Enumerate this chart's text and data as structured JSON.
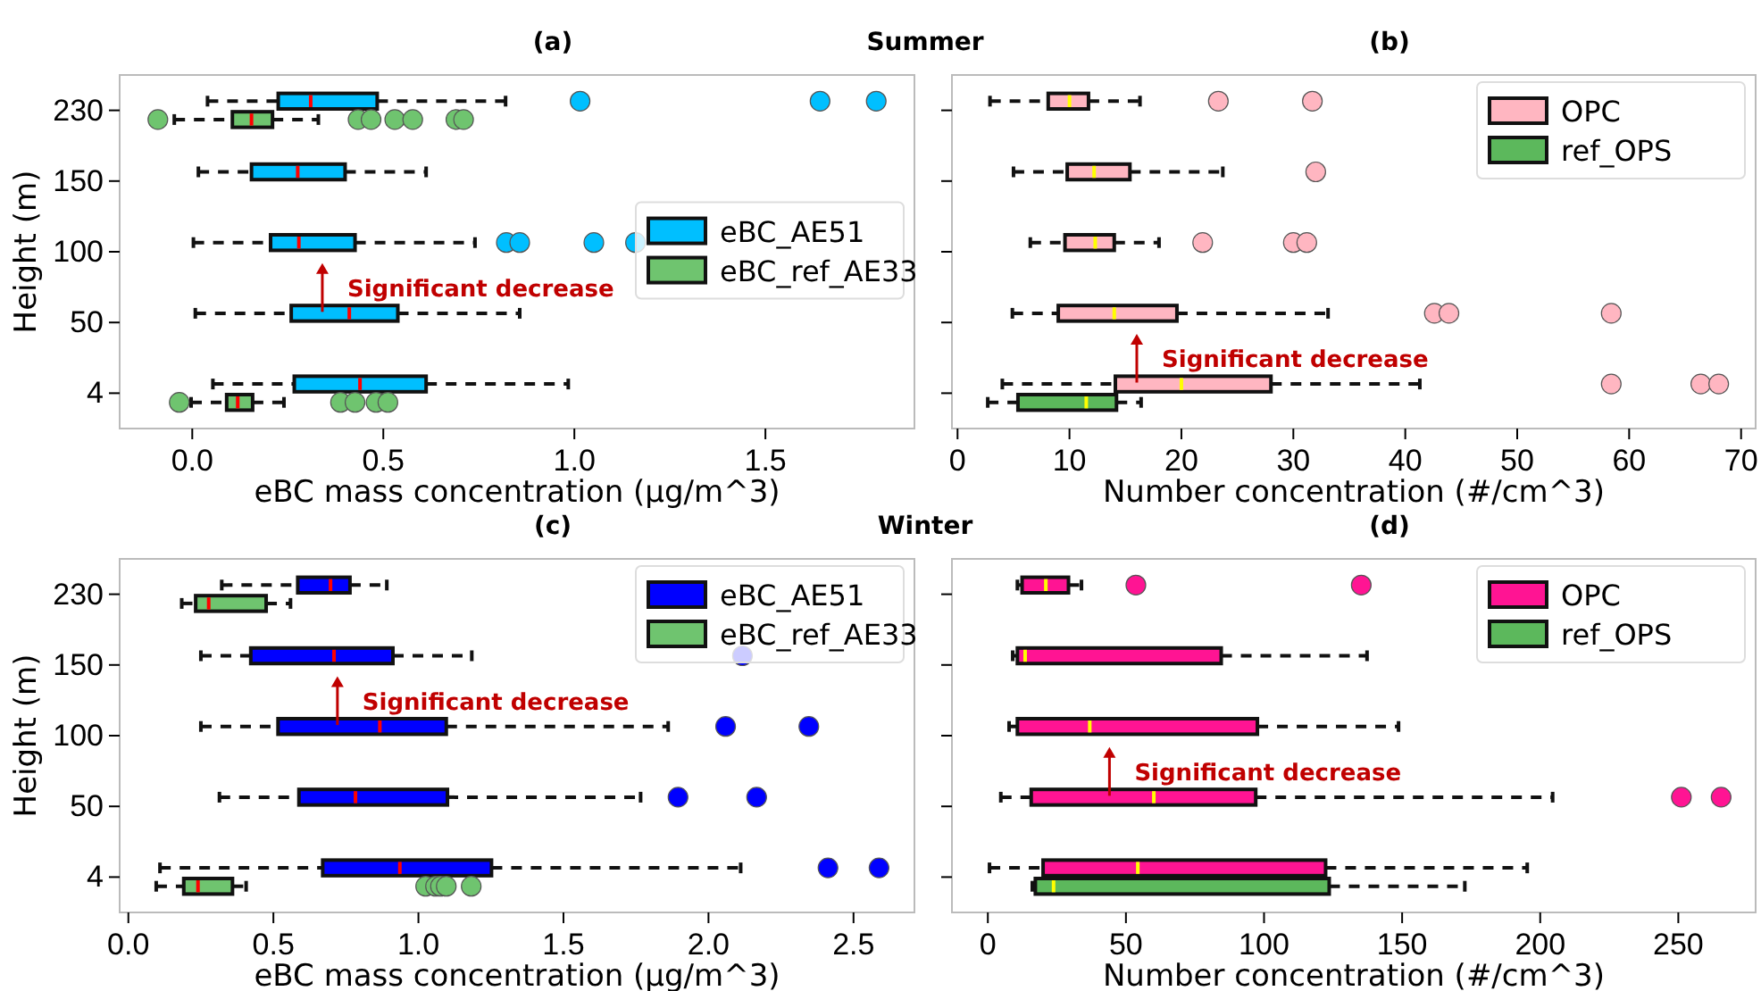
{
  "chart_data": [
    {
      "type": "box",
      "title": "(a)",
      "subtitle": "Summer",
      "xlabel": "eBC mass concentration (μg/m^3)",
      "ylabel": "Height (m)",
      "orientation": "horizontal",
      "categories": [
        "230",
        "150",
        "100",
        "50",
        "4"
      ],
      "xlim": [
        -0.19,
        1.89
      ],
      "xticks": [
        {
          "value": 0,
          "label": "0.0"
        },
        0.5,
        {
          "value": 1,
          "label": "1.0"
        },
        1.5
      ],
      "legend": "right",
      "annotations": [
        "Significant decrease"
      ],
      "series": [
        {
          "name": "eBC_AE51",
          "color": "#00bfff",
          "boxes": [
            {
              "low": 0.04,
              "q1": 0.225,
              "median": 0.31,
              "q3": 0.484,
              "high": 0.82,
              "outliers": [
                1.015,
                1.643,
                1.79
              ]
            },
            {
              "low": 0.016,
              "q1": 0.155,
              "median": 0.276,
              "q3": 0.4,
              "high": 0.612
            },
            {
              "low": 0.003,
              "q1": 0.205,
              "median": 0.279,
              "q3": 0.426,
              "high": 0.74,
              "outliers": [
                0.822,
                0.857,
                1.051,
                1.16
              ]
            },
            {
              "low": 0.008,
              "q1": 0.259,
              "median": 0.411,
              "q3": 0.538,
              "high": 0.857
            },
            {
              "low": 0.054,
              "q1": 0.267,
              "median": 0.439,
              "q3": 0.612,
              "high": 0.984
            }
          ]
        },
        {
          "name": "eBC_ref_AE33",
          "color": "#6fc46f",
          "boxes": [
            {
              "low": -0.047,
              "q1": 0.105,
              "median": 0.155,
              "q3": 0.21,
              "high": 0.33,
              "outliers": [
                -0.09,
                0.434,
                0.468,
                0.53,
                0.577,
                0.69,
                0.71
              ]
            },
            null,
            null,
            null,
            {
              "low": -0.003,
              "q1": 0.09,
              "median": 0.119,
              "q3": 0.158,
              "high": 0.24,
              "outliers": [
                -0.034,
                0.388,
                0.426,
                0.481,
                0.512
              ]
            }
          ]
        }
      ]
    },
    {
      "type": "box",
      "title": "(b)",
      "xlabel": "Number concentration (#/cm^3)",
      "orientation": "horizontal",
      "categories": [
        "230",
        "150",
        "100",
        "50",
        "4"
      ],
      "xlim": [
        -0.5,
        71.3
      ],
      "xticks": [
        0,
        10,
        20,
        30,
        40,
        50,
        60,
        70
      ],
      "legend": "top right",
      "tick_labels": "x",
      "annotations": [
        "Significant decrease"
      ],
      "series": [
        {
          "name": "OPC",
          "color": "#ffb6c1",
          "boxes": [
            {
              "low": 2.9,
              "q1": 8.1,
              "median": 10,
              "q3": 11.7,
              "high": 16.3,
              "outliers": [
                23.3,
                31.7
              ]
            },
            {
              "low": 5,
              "q1": 9.8,
              "median": 12.2,
              "q3": 15.4,
              "high": 23.7,
              "outliers": [
                32
              ]
            },
            {
              "low": 6.5,
              "q1": 9.6,
              "median": 12.3,
              "q3": 14,
              "high": 18,
              "outliers": [
                21.9,
                30,
                31.2
              ]
            },
            {
              "low": 4.9,
              "q1": 9,
              "median": 14,
              "q3": 19.6,
              "high": 33.1,
              "outliers": [
                42.6,
                43.9,
                58.4
              ]
            },
            {
              "low": 4,
              "q1": 14.1,
              "median": 20,
              "q3": 28,
              "high": 41.3,
              "outliers": [
                58.4,
                66.4,
                68
              ]
            }
          ]
        },
        {
          "name": "ref_OPS",
          "color": "#5cb85c",
          "boxes": [
            null,
            null,
            null,
            null,
            {
              "low": 2.7,
              "q1": 5.4,
              "median": 11.5,
              "q3": 14.2,
              "high": 16.4
            }
          ]
        }
      ]
    },
    {
      "type": "box",
      "title": "(c)",
      "subtitle": "Winter",
      "xlabel": "eBC mass concentration (μg/m^3)",
      "ylabel": "Height (m)",
      "orientation": "horizontal",
      "categories": [
        "230",
        "150",
        "100",
        "50",
        "4"
      ],
      "xlim": [
        -0.03,
        2.71
      ],
      "xticks": [
        {
          "value": 0,
          "label": "0.0"
        },
        0.5,
        {
          "value": 1,
          "label": "1.0"
        },
        1.5,
        {
          "value": 2,
          "label": "2.0"
        },
        2.5
      ],
      "legend": "top right",
      "annotations": [
        "Significant decrease"
      ],
      "series": [
        {
          "name": "eBC_AE51",
          "color": "#0000ff",
          "boxes": [
            {
              "low": 0.322,
              "q1": 0.584,
              "median": 0.697,
              "q3": 0.764,
              "high": 0.891
            },
            {
              "low": 0.25,
              "q1": 0.422,
              "median": 0.709,
              "q3": 0.912,
              "high": 1.184,
              "outliers": [
                2.117
              ]
            },
            {
              "low": 0.25,
              "q1": 0.516,
              "median": 0.867,
              "q3": 1.096,
              "high": 1.861,
              "outliers": [
                2.059,
                2.346
              ]
            },
            {
              "low": 0.314,
              "q1": 0.588,
              "median": 0.783,
              "q3": 1.1,
              "high": 1.766,
              "outliers": [
                1.895,
                2.166
              ]
            },
            {
              "low": 0.109,
              "q1": 0.67,
              "median": 0.936,
              "q3": 1.252,
              "high": 2.111,
              "outliers": [
                2.412,
                2.588
              ]
            }
          ]
        },
        {
          "name": "eBC_ref_AE33",
          "color": "#6fc46f",
          "boxes": [
            {
              "low": 0.184,
              "q1": 0.232,
              "median": 0.277,
              "q3": 0.475,
              "high": 0.559
            },
            null,
            null,
            null,
            {
              "low": 0.096,
              "q1": 0.191,
              "median": 0.24,
              "q3": 0.359,
              "high": 0.406,
              "outliers": [
                1.025,
                1.059,
                1.076,
                1.096,
                1.182
              ]
            }
          ]
        }
      ]
    },
    {
      "type": "box",
      "title": "(d)",
      "xlabel": "Number concentration (#/cm^3)",
      "orientation": "horizontal",
      "categories": [
        "230",
        "150",
        "100",
        "50",
        "4"
      ],
      "xlim": [
        -13,
        278
      ],
      "xticks": [
        0,
        50,
        100,
        150,
        200,
        250
      ],
      "legend": "top right",
      "tick_labels": "x",
      "annotations": [
        "Significant decrease"
      ],
      "series": [
        {
          "name": "OPC",
          "color": "#ff1493",
          "boxes": [
            {
              "low": 10.7,
              "q1": 12.4,
              "median": 21,
              "q3": 29.2,
              "high": 33.9,
              "outliers": [
                53.6,
                135.2
              ]
            },
            {
              "low": 9,
              "q1": 10.7,
              "median": 13.5,
              "q3": 84.5,
              "high": 137.3
            },
            {
              "low": 7.7,
              "q1": 10.7,
              "median": 36.9,
              "q3": 97.6,
              "high": 148.7
            },
            {
              "low": 4.7,
              "q1": 15.7,
              "median": 60.1,
              "q3": 97,
              "high": 204.5,
              "outliers": [
                251.1,
                265.5
              ]
            },
            {
              "low": 0.6,
              "q1": 20,
              "median": 54.3,
              "q3": 122.3,
              "high": 195.3
            }
          ]
        },
        {
          "name": "ref_OPS",
          "color": "#5cb85c",
          "boxes": [
            null,
            null,
            null,
            null,
            {
              "low": 16.1,
              "q1": 17.2,
              "median": 23.8,
              "q3": 123.6,
              "high": 172.7
            }
          ]
        }
      ]
    }
  ]
}
